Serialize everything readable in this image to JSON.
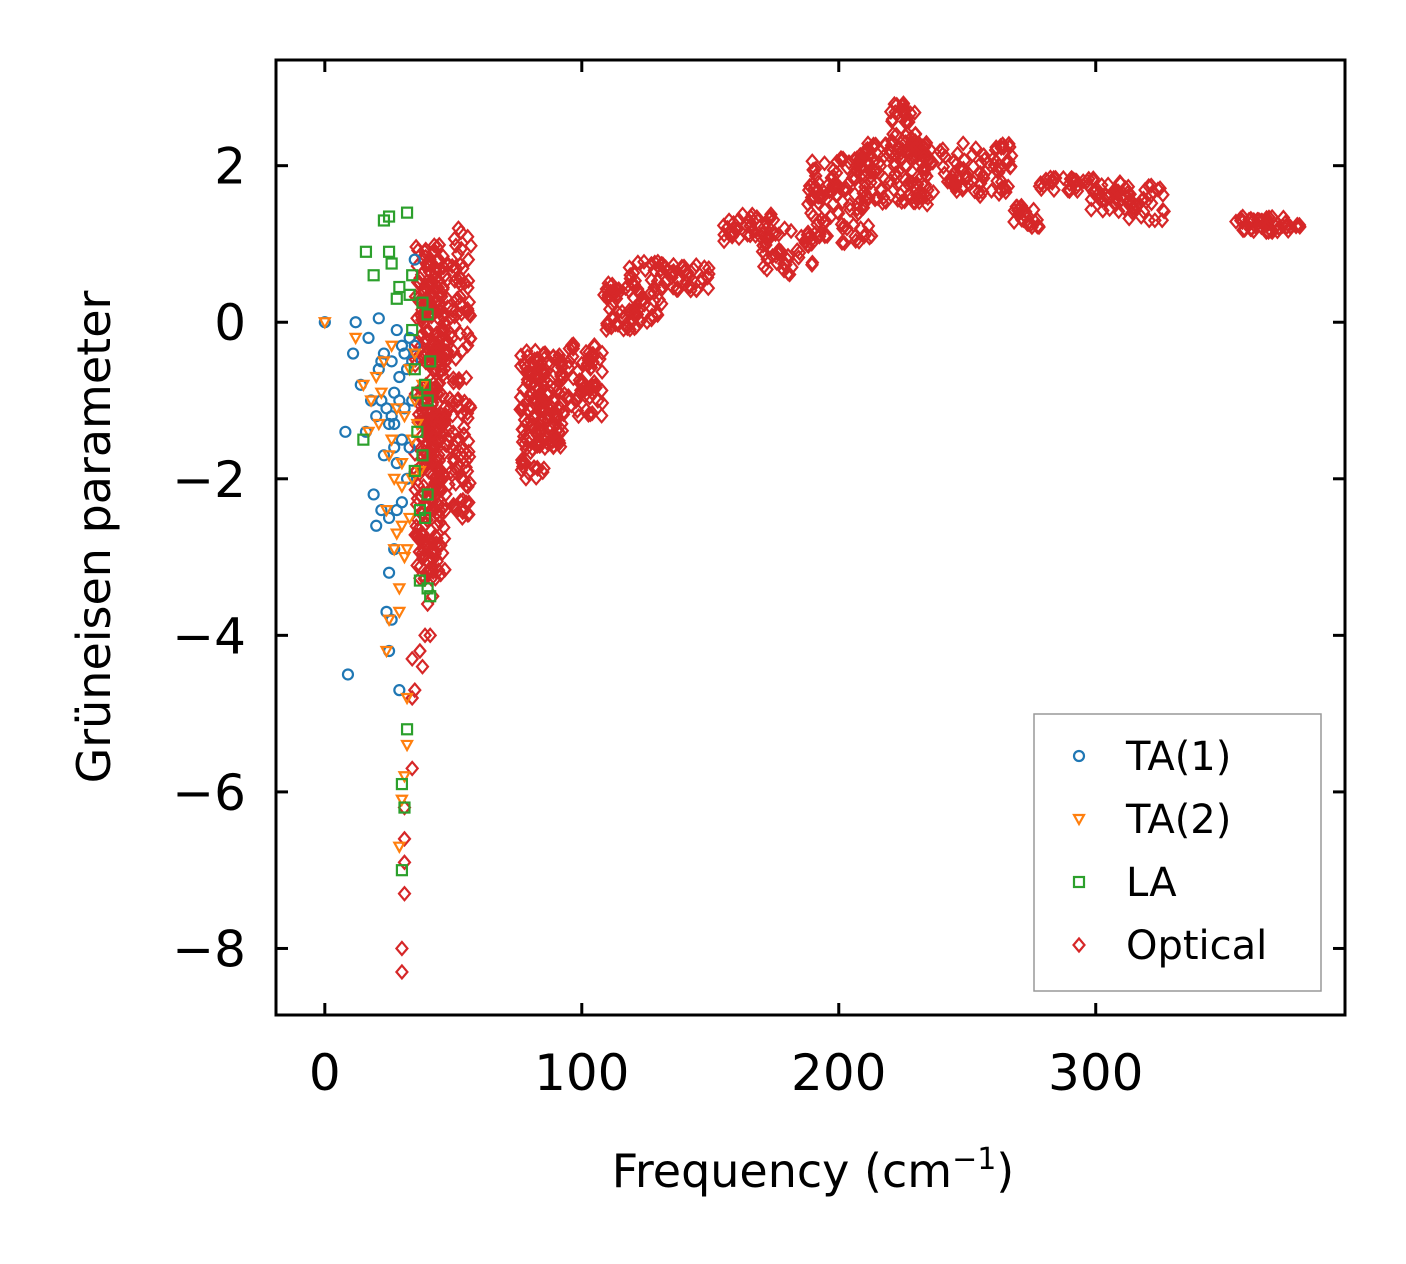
{
  "chart_data": {
    "type": "scatter",
    "title": "",
    "xlabel": "Frequency (cm",
    "xlabel_sup": "−1",
    "xlabel_tail": ")",
    "ylabel": "Grüneisen parameter",
    "xlim": [
      -19,
      397
    ],
    "ylim": [
      -8.85,
      3.35
    ],
    "x_ticks": [
      0,
      100,
      200,
      300
    ],
    "x_tick_labels": [
      "0",
      "100",
      "200",
      "300"
    ],
    "y_ticks": [
      2,
      0,
      -2,
      -4,
      -6,
      -8
    ],
    "y_tick_labels": [
      "2",
      "0",
      "−2",
      "−4",
      "−6",
      "−8"
    ],
    "grid": false,
    "legend_position": "lower-right",
    "series": [
      {
        "name": "TA(1)",
        "marker": "circle",
        "color": "#1f77b4",
        "points": [
          [
            0,
            0.0
          ],
          [
            8,
            -1.4
          ],
          [
            9,
            -4.5
          ],
          [
            11,
            -0.4
          ],
          [
            12,
            0.0
          ],
          [
            14,
            -0.8
          ],
          [
            16,
            -1.4
          ],
          [
            17,
            -0.2
          ],
          [
            18,
            -1.0
          ],
          [
            19,
            -2.2
          ],
          [
            20,
            -1.2
          ],
          [
            20,
            -2.6
          ],
          [
            21,
            0.05
          ],
          [
            21,
            -0.6
          ],
          [
            22,
            -0.5
          ],
          [
            22,
            -1.0
          ],
          [
            22,
            -2.4
          ],
          [
            23,
            -1.7
          ],
          [
            23,
            -0.4
          ],
          [
            24,
            -1.1
          ],
          [
            24,
            -3.7
          ],
          [
            25,
            -1.3
          ],
          [
            25,
            -2.5
          ],
          [
            25,
            -4.2
          ],
          [
            25,
            -3.2
          ],
          [
            26,
            -0.5
          ],
          [
            26,
            -1.2
          ],
          [
            26,
            -3.8
          ],
          [
            27,
            -1.6
          ],
          [
            27,
            -0.9
          ],
          [
            27,
            -2.9
          ],
          [
            27,
            -1.3
          ],
          [
            28,
            -2.4
          ],
          [
            28,
            -1.8
          ],
          [
            28,
            -0.1
          ],
          [
            29,
            -4.7
          ],
          [
            29,
            -1.0
          ],
          [
            29,
            -0.7
          ],
          [
            30,
            -2.3
          ],
          [
            30,
            -1.5
          ],
          [
            30,
            -0.3
          ],
          [
            31,
            -0.4
          ],
          [
            31,
            -1.1
          ],
          [
            32,
            -2.0
          ],
          [
            32,
            -0.6
          ],
          [
            33,
            -0.2
          ],
          [
            33,
            -1.6
          ],
          [
            34,
            -0.5
          ],
          [
            34,
            -1.0
          ],
          [
            35,
            0.8
          ],
          [
            35,
            -0.3
          ]
        ]
      },
      {
        "name": "TA(2)",
        "marker": "triangle-down",
        "color": "#ff7f0e",
        "points": [
          [
            0,
            0.0
          ],
          [
            12,
            -0.2
          ],
          [
            15,
            -0.8
          ],
          [
            17,
            -1.4
          ],
          [
            18,
            -1.0
          ],
          [
            20,
            -0.7
          ],
          [
            21,
            -1.3
          ],
          [
            22,
            -0.9
          ],
          [
            23,
            -0.5
          ],
          [
            24,
            -4.2
          ],
          [
            24,
            -2.4
          ],
          [
            25,
            -1.7
          ],
          [
            25,
            -3.8
          ],
          [
            26,
            -0.3
          ],
          [
            26,
            -1.5
          ],
          [
            27,
            -2.0
          ],
          [
            27,
            -2.9
          ],
          [
            28,
            -1.1
          ],
          [
            28,
            -2.7
          ],
          [
            29,
            -3.4
          ],
          [
            29,
            -3.7
          ],
          [
            29,
            -6.7
          ],
          [
            30,
            -2.1
          ],
          [
            30,
            -1.8
          ],
          [
            30,
            -2.6
          ],
          [
            30,
            -6.1
          ],
          [
            31,
            -5.8
          ],
          [
            31,
            -3.0
          ],
          [
            31,
            -1.2
          ],
          [
            32,
            -5.4
          ],
          [
            32,
            -4.8
          ],
          [
            32,
            -2.9
          ],
          [
            33,
            -2.5
          ],
          [
            33,
            -0.6
          ],
          [
            34,
            -2.0
          ],
          [
            34,
            -1.5
          ],
          [
            35,
            -1.0
          ],
          [
            35,
            -0.4
          ],
          [
            36,
            -1.3
          ],
          [
            37,
            -1.9
          ],
          [
            38,
            -0.8
          ]
        ]
      },
      {
        "name": "LA",
        "marker": "square",
        "color": "#2ca02c",
        "points": [
          [
            15,
            -1.5
          ],
          [
            16,
            0.9
          ],
          [
            19,
            0.6
          ],
          [
            23,
            1.3
          ],
          [
            25,
            1.35
          ],
          [
            25,
            0.9
          ],
          [
            26,
            0.75
          ],
          [
            28,
            0.3
          ],
          [
            29,
            0.45
          ],
          [
            30,
            -7.0
          ],
          [
            30,
            -5.9
          ],
          [
            31,
            -6.2
          ],
          [
            32,
            -5.2
          ],
          [
            32,
            1.4
          ],
          [
            33,
            0.35
          ],
          [
            34,
            0.6
          ],
          [
            34,
            -0.1
          ],
          [
            35,
            -0.6
          ],
          [
            35,
            -1.9
          ],
          [
            36,
            -1.4
          ],
          [
            36,
            -0.9
          ],
          [
            37,
            -3.3
          ],
          [
            37,
            -2.4
          ],
          [
            38,
            -1.7
          ],
          [
            38,
            0.25
          ],
          [
            39,
            -2.5
          ],
          [
            39,
            -0.8
          ],
          [
            40,
            -3.4
          ],
          [
            40,
            -2.2
          ],
          [
            40,
            0.1
          ],
          [
            40,
            -1.0
          ],
          [
            41,
            -0.5
          ],
          [
            41,
            -3.5
          ]
        ]
      },
      {
        "name": "Optical",
        "marker": "diamond",
        "color": "#d62728",
        "points": [
          [
            30,
            -8.3
          ],
          [
            30,
            -8.0
          ],
          [
            31,
            -7.3
          ],
          [
            31,
            -6.9
          ],
          [
            31,
            -6.6
          ],
          [
            31,
            -6.2
          ],
          [
            34,
            -5.7
          ],
          [
            34,
            -4.8
          ],
          [
            34,
            -4.3
          ],
          [
            35,
            -4.7
          ],
          [
            37,
            -4.2
          ],
          [
            38,
            -4.4
          ],
          [
            39,
            -4.0
          ],
          [
            40,
            -3.6
          ],
          [
            41,
            -4.0
          ],
          [
            42,
            -3.5
          ],
          [
            55,
            -2.3
          ],
          [
            52,
            1.2
          ],
          [
            53,
            1.15
          ]
        ],
        "clusters": [
          {
            "fmin": 35,
            "fmax": 47,
            "gmin": -3.3,
            "gmax": 1.0,
            "n": 260
          },
          {
            "fmin": 44,
            "fmax": 57,
            "gmin": -2.5,
            "gmax": 1.1,
            "n": 160
          },
          {
            "fmin": 38,
            "fmax": 44,
            "gmin": -3.1,
            "gmax": 0.4,
            "n": 80
          },
          {
            "fmin": 76,
            "fmax": 86,
            "gmin": -2.0,
            "gmax": -0.3,
            "n": 90
          },
          {
            "fmin": 82,
            "fmax": 93,
            "gmin": -1.6,
            "gmax": -0.4,
            "n": 90
          },
          {
            "fmin": 90,
            "fmax": 108,
            "gmin": -1.2,
            "gmax": -0.2,
            "n": 70
          },
          {
            "fmin": 108,
            "fmax": 122,
            "gmin": -0.1,
            "gmax": 0.5,
            "n": 50
          },
          {
            "fmin": 118,
            "fmax": 132,
            "gmin": 0.0,
            "gmax": 0.8,
            "n": 45
          },
          {
            "fmin": 130,
            "fmax": 150,
            "gmin": 0.4,
            "gmax": 0.75,
            "n": 40
          },
          {
            "fmin": 155,
            "fmax": 175,
            "gmin": 1.0,
            "gmax": 1.4,
            "n": 40
          },
          {
            "fmin": 170,
            "fmax": 190,
            "gmin": 0.6,
            "gmax": 1.2,
            "n": 45
          },
          {
            "fmin": 188,
            "fmax": 213,
            "gmin": 1.0,
            "gmax": 2.1,
            "n": 110
          },
          {
            "fmin": 208,
            "fmax": 235,
            "gmin": 1.5,
            "gmax": 2.3,
            "n": 110
          },
          {
            "fmin": 220,
            "fmax": 230,
            "gmin": 2.0,
            "gmax": 2.8,
            "n": 45
          },
          {
            "fmin": 232,
            "fmax": 268,
            "gmin": 1.6,
            "gmax": 2.3,
            "n": 90
          },
          {
            "fmin": 268,
            "fmax": 278,
            "gmin": 1.2,
            "gmax": 1.5,
            "n": 25
          },
          {
            "fmin": 278,
            "fmax": 300,
            "gmin": 1.65,
            "gmax": 1.85,
            "n": 35
          },
          {
            "fmin": 298,
            "fmax": 315,
            "gmin": 1.4,
            "gmax": 1.8,
            "n": 35
          },
          {
            "fmin": 312,
            "fmax": 327,
            "gmin": 1.3,
            "gmax": 1.75,
            "n": 30
          },
          {
            "fmin": 352,
            "fmax": 380,
            "gmin": 1.15,
            "gmax": 1.35,
            "n": 50
          }
        ]
      }
    ]
  }
}
